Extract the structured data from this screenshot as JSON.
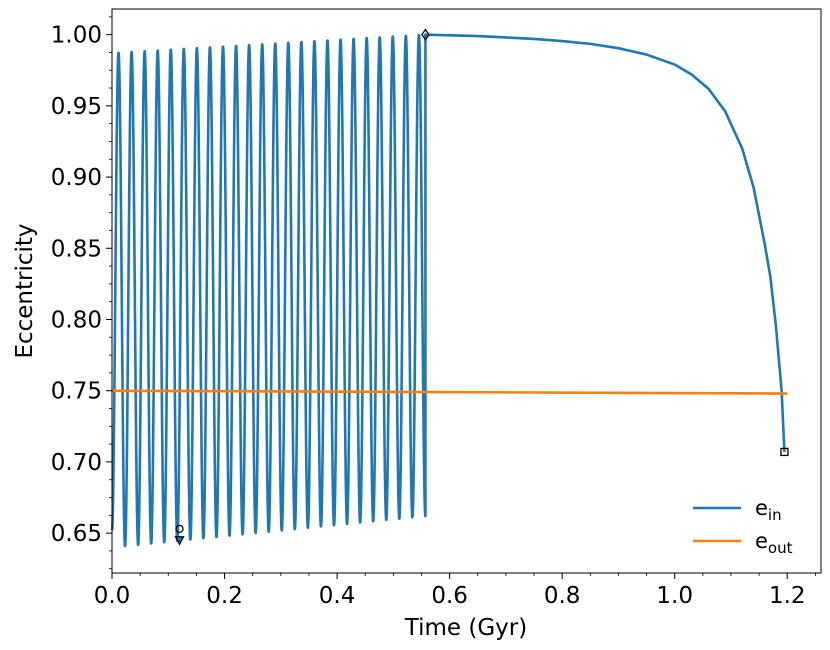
{
  "chart_data": {
    "type": "line",
    "title": "",
    "xlabel": "Time (Gyr)",
    "ylabel": "Eccentricity",
    "xlim": [
      0.0,
      1.26
    ],
    "ylim": [
      0.622,
      1.018
    ],
    "x_ticks": [
      0.0,
      0.2,
      0.4,
      0.6,
      0.8,
      1.0,
      1.2
    ],
    "x_tick_labels": [
      "0.0",
      "0.2",
      "0.4",
      "0.6",
      "0.8",
      "1.0",
      "1.2"
    ],
    "y_ticks": [
      0.65,
      0.7,
      0.75,
      0.8,
      0.85,
      0.9,
      0.95,
      1.0
    ],
    "y_tick_labels": [
      "0.65",
      "0.70",
      "0.75",
      "0.80",
      "0.85",
      "0.90",
      "0.95",
      "1.00"
    ],
    "grid": false,
    "legend_position": "bottom-right",
    "series": [
      {
        "name": "e_in",
        "legend_main": "e",
        "legend_sub": "in",
        "color": "#1f77b4",
        "oscillation": {
          "x_start": 0.0,
          "x_end": 0.557,
          "cycles": 24,
          "max_start": 0.987,
          "max_end": 1.0,
          "min_start": 0.64,
          "min_end": 0.662,
          "initial_value": 0.652
        },
        "decay": [
          [
            0.557,
            1.0
          ],
          [
            0.6,
            0.9995
          ],
          [
            0.65,
            0.999
          ],
          [
            0.7,
            0.998
          ],
          [
            0.75,
            0.997
          ],
          [
            0.8,
            0.9955
          ],
          [
            0.85,
            0.9935
          ],
          [
            0.9,
            0.9905
          ],
          [
            0.95,
            0.986
          ],
          [
            1.0,
            0.979
          ],
          [
            1.03,
            0.972
          ],
          [
            1.06,
            0.962
          ],
          [
            1.09,
            0.946
          ],
          [
            1.12,
            0.92
          ],
          [
            1.14,
            0.893
          ],
          [
            1.16,
            0.853
          ],
          [
            1.17,
            0.83
          ],
          [
            1.18,
            0.795
          ],
          [
            1.19,
            0.75
          ],
          [
            1.195,
            0.707
          ]
        ]
      },
      {
        "name": "e_out",
        "legend_main": "e",
        "legend_sub": "out",
        "color": "#ff7f0e",
        "points": [
          [
            0.0,
            0.75
          ],
          [
            1.2,
            0.748
          ]
        ]
      }
    ],
    "markers": [
      {
        "shape": "circle",
        "x": 0.12,
        "y": 0.653
      },
      {
        "shape": "triangle-down",
        "x": 0.12,
        "y": 0.645
      },
      {
        "shape": "diamond",
        "x": 0.557,
        "y": 1.0
      },
      {
        "shape": "square",
        "x": 1.195,
        "y": 0.707
      }
    ]
  }
}
